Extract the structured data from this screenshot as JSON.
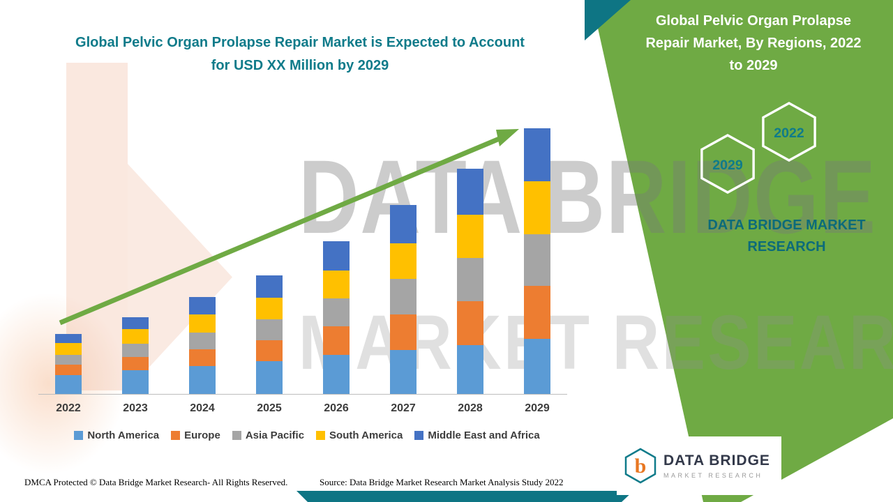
{
  "chart_title": "Global Pelvic Organ Prolapse Repair Market is Expected to Account for USD XX Million by 2029",
  "right_panel": {
    "title": "Global Pelvic Organ Prolapse Repair Market, By Regions, 2022 to 2029",
    "hexagon_front": "2029",
    "hexagon_back": "2022",
    "brand_text": "DATA BRIDGE MARKET RESEARCH"
  },
  "watermark": {
    "line1": "DATA BRIDGE",
    "line2": "MARKET RESEARCH"
  },
  "footer": {
    "dmca": "DMCA Protected © Data Bridge Market Research- All Rights Reserved.",
    "source": "Source: Data Bridge Market Research Market Analysis Study 2022"
  },
  "logo": {
    "name": "DATA BRIDGE",
    "sub": "MARKET RESEARCH"
  },
  "colors": {
    "teal": "#0f7b8a",
    "green_panel": "#6faa44",
    "arrow_green": "#6faa44",
    "axis_gray": "#bdbdbd",
    "label_gray": "#3d3d3d"
  },
  "chart_data": {
    "type": "bar",
    "stacked": true,
    "title": "Global Pelvic Organ Prolapse Repair Market is Expected to Account for USD XX Million by 2029",
    "xlabel": "",
    "ylabel": "",
    "ylim": [
      0,
      400
    ],
    "grid": false,
    "legend_position": "bottom",
    "trend_arrow": true,
    "categories": [
      "2022",
      "2023",
      "2024",
      "2025",
      "2026",
      "2027",
      "2028",
      "2029"
    ],
    "series": [
      {
        "name": "North America",
        "color": "#5b9bd5",
        "values": [
          27,
          34,
          40,
          47,
          56,
          63,
          70,
          79
        ]
      },
      {
        "name": "Europe",
        "color": "#ed7d31",
        "values": [
          15,
          19,
          24,
          30,
          41,
          51,
          63,
          76
        ]
      },
      {
        "name": "Asia Pacific",
        "color": "#a5a5a5",
        "values": [
          14,
          19,
          24,
          30,
          40,
          51,
          62,
          74
        ]
      },
      {
        "name": "South America",
        "color": "#ffc000",
        "values": [
          17,
          21,
          26,
          31,
          40,
          51,
          62,
          76
        ]
      },
      {
        "name": "Middle East and Africa",
        "color": "#4472c4",
        "values": [
          13,
          17,
          25,
          32,
          42,
          55,
          66,
          76
        ]
      }
    ]
  }
}
